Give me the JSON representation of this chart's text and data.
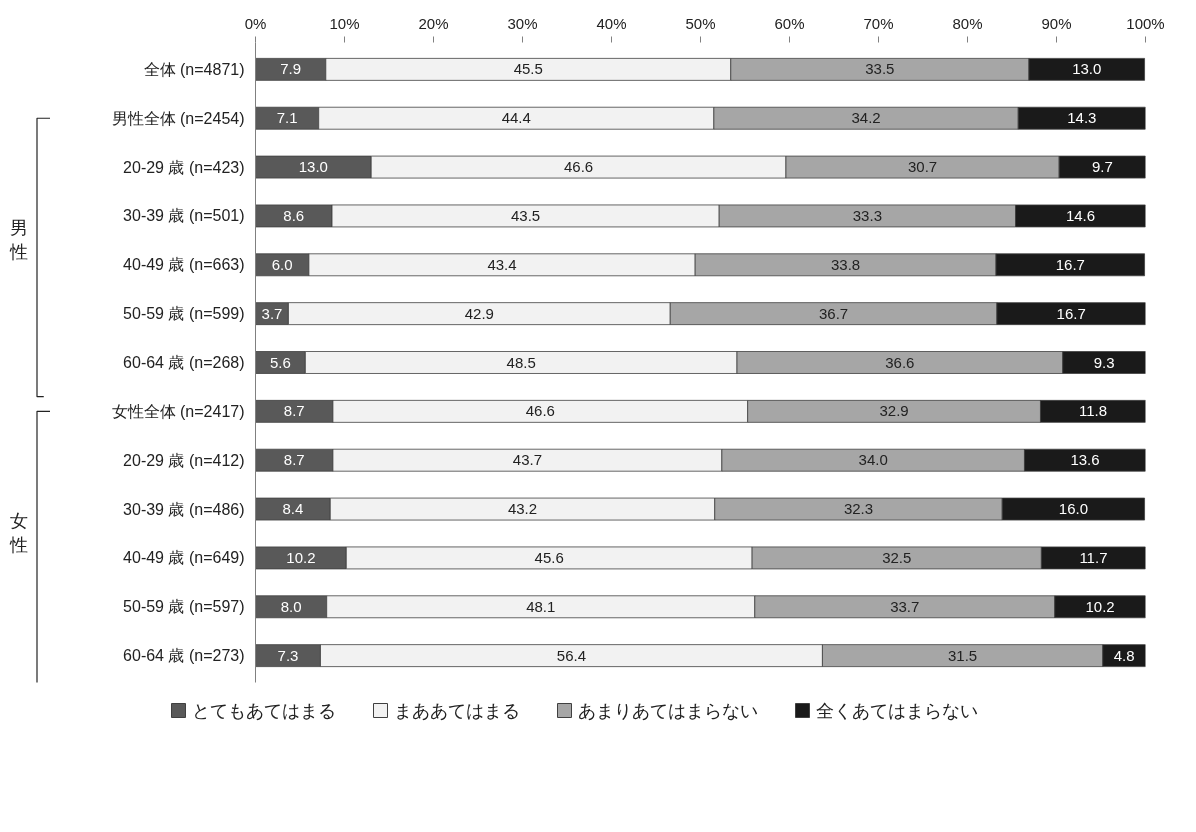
{
  "chart_data": {
    "type": "bar",
    "orientation": "horizontal",
    "stacked": true,
    "categories": [
      "全体 (n=4871)",
      "男性全体 (n=2454)",
      "20-29 歳 (n=423)",
      "30-39 歳 (n=501)",
      "40-49 歳 (n=663)",
      "50-59 歳 (n=599)",
      "60-64 歳 (n=268)",
      "女性全体 (n=2417)",
      "20-29 歳 (n=412)",
      "30-39 歳 (n=486)",
      "40-49 歳 (n=649)",
      "50-59 歳 (n=597)",
      "60-64 歳 (n=273)"
    ],
    "series": [
      {
        "name": "とてもあてはまる",
        "color": "#595959",
        "values": [
          7.9,
          7.1,
          13.0,
          8.6,
          6.0,
          3.7,
          5.6,
          8.7,
          8.7,
          8.4,
          10.2,
          8.0,
          7.3
        ],
        "value_labels": [
          "7.9",
          "7.1",
          "13.0",
          "8.6",
          "6.0",
          "3.7",
          "5.6",
          "8.7",
          "8.7",
          "8.4",
          "10.2",
          "8.0",
          "7.3"
        ]
      },
      {
        "name": "まああてはまる",
        "color": "#f2f2f2",
        "values": [
          45.5,
          44.4,
          46.6,
          43.5,
          43.4,
          42.9,
          48.5,
          46.6,
          43.7,
          43.2,
          45.6,
          48.1,
          56.4
        ],
        "value_labels": [
          "45.5",
          "44.4",
          "46.6",
          "43.5",
          "43.4",
          "42.9",
          "48.5",
          "46.6",
          "43.7",
          "43.2",
          "45.6",
          "48.1",
          "56.4"
        ]
      },
      {
        "name": "あまりあてはまらない",
        "color": "#a6a6a6",
        "values": [
          33.5,
          34.2,
          30.7,
          33.3,
          33.8,
          36.7,
          36.6,
          32.9,
          34.0,
          32.3,
          32.5,
          33.7,
          31.5
        ],
        "value_labels": [
          "33.5",
          "34.2",
          "30.7",
          "33.3",
          "33.8",
          "36.7",
          "36.6",
          "32.9",
          "34.0",
          "32.3",
          "32.5",
          "33.7",
          "31.5"
        ]
      },
      {
        "name": "全くあてはまらない",
        "color": "#1a1a1a",
        "values": [
          13.0,
          14.3,
          9.7,
          14.6,
          16.7,
          16.7,
          9.3,
          11.8,
          13.6,
          16.0,
          11.7,
          10.2,
          4.8
        ],
        "value_labels": [
          "13.0",
          "14.3",
          "9.7",
          "14.6",
          "16.7",
          "16.7",
          "9.3",
          "11.8",
          "13.6",
          "16.0",
          "11.7",
          "10.2",
          "4.8"
        ]
      }
    ],
    "xlim": [
      0,
      100
    ],
    "xticks": [
      {
        "value": 0,
        "label": "0%"
      },
      {
        "value": 10,
        "label": "10%"
      },
      {
        "value": 20,
        "label": "20%"
      },
      {
        "value": 30,
        "label": "30%"
      },
      {
        "value": 40,
        "label": "40%"
      },
      {
        "value": 50,
        "label": "50%"
      },
      {
        "value": 60,
        "label": "60%"
      },
      {
        "value": 70,
        "label": "70%"
      },
      {
        "value": 80,
        "label": "80%"
      },
      {
        "value": 90,
        "label": "90%"
      },
      {
        "value": 100,
        "label": "100%"
      }
    ],
    "annotations": [
      "男性",
      "女性"
    ],
    "legend": "bottom",
    "grid": false
  }
}
